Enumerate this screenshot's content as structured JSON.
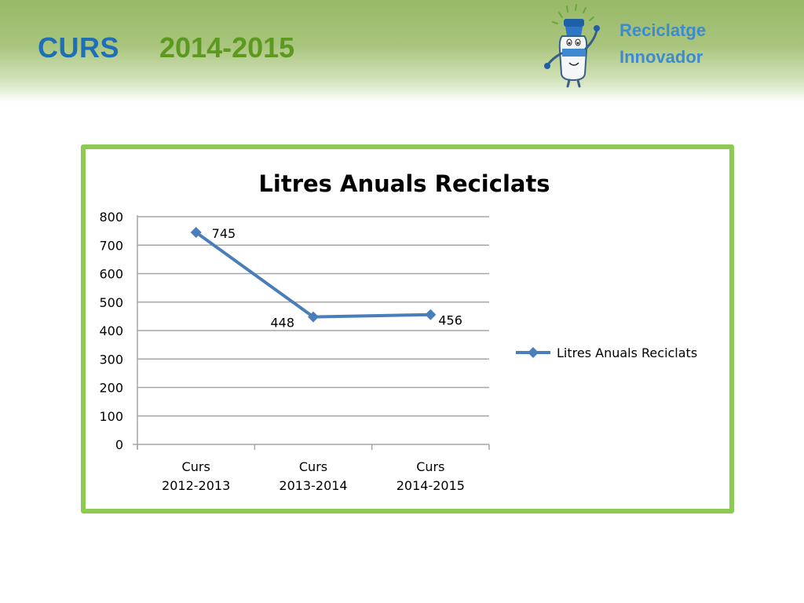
{
  "header": {
    "curs_label": "CURS",
    "year_label": "2014-2015",
    "logo_line1": "Reciclatge",
    "logo_line2": "Innovador"
  },
  "colors": {
    "header_green": "#98b968",
    "curs_blue": "#1f6fb8",
    "year_green": "#5b9a1e",
    "logo_blue": "#3e8ad0",
    "frame_green": "#8ccb52",
    "series_blue": "#4a7ebb",
    "grid_gray": "#a6a6a6"
  },
  "icons": {
    "logo": "recycling-mascot-icon"
  },
  "chart_data": {
    "type": "line",
    "title": "Litres Anuals Reciclats",
    "xlabel": "",
    "ylabel": "",
    "categories": [
      [
        "Curs",
        "2012-2013"
      ],
      [
        "Curs",
        "2013-2014"
      ],
      [
        "Curs",
        "2014-2015"
      ]
    ],
    "series": [
      {
        "name": "Litres Anuals Reciclats",
        "values": [
          745,
          448,
          456
        ],
        "color": "#4a7ebb",
        "marker": "diamond"
      }
    ],
    "data_labels": [
      "745",
      "448",
      "456"
    ],
    "ylim": [
      0,
      800
    ],
    "yticks": [
      0,
      100,
      200,
      300,
      400,
      500,
      600,
      700,
      800
    ],
    "grid": true,
    "legend_position": "right"
  }
}
